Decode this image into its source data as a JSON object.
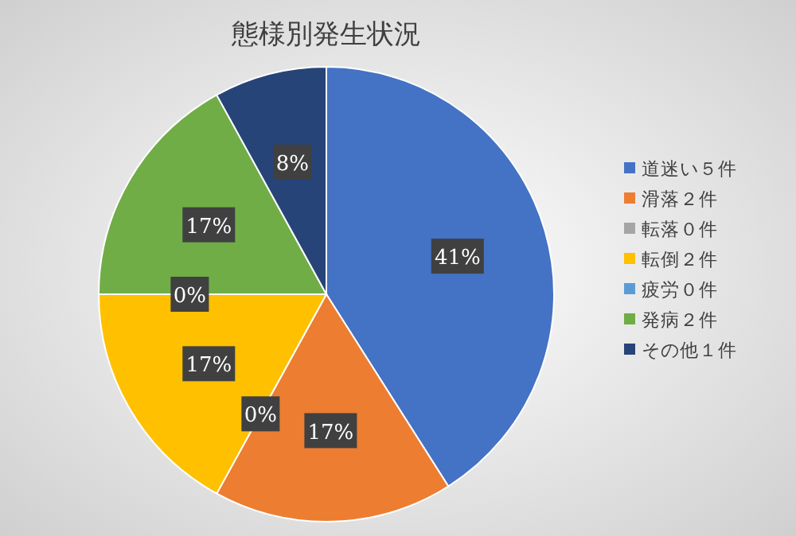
{
  "chart_data": {
    "type": "pie",
    "title": "態様別発生状況",
    "categories": [
      "道迷い５件",
      "滑落２件",
      "転落０件",
      "転倒２件",
      "疲労０件",
      "発病２件",
      "その他１件"
    ],
    "values": [
      41,
      17,
      0,
      17,
      0,
      17,
      8
    ],
    "value_labels": [
      "41%",
      "17%",
      "0%",
      "17%",
      "0%",
      "17%",
      "8%"
    ],
    "colors": [
      "#4472c4",
      "#ed7d31",
      "#a5a5a5",
      "#ffc000",
      "#5b9bd5",
      "#70ad47",
      "#264478"
    ],
    "legend": "right"
  }
}
